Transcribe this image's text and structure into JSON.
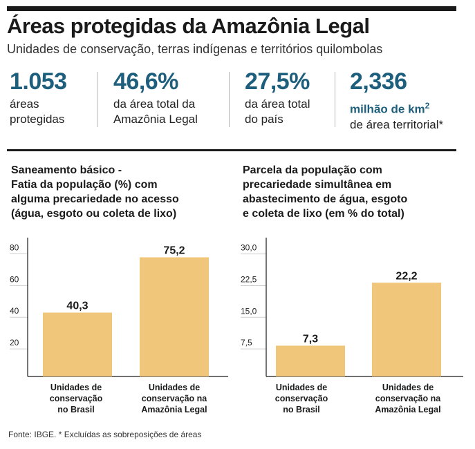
{
  "header": {
    "title": "Áreas protegidas da Amazônia Legal",
    "subtitle": "Unidades de conservação, terras indígenas e territórios quilombolas"
  },
  "stats": [
    {
      "value": "1.053",
      "desc_lines": [
        "áreas",
        "protegidas"
      ]
    },
    {
      "value": "46,6%",
      "desc_lines": [
        "da área total da",
        "Amazônia Legal"
      ]
    },
    {
      "value": "27,5%",
      "desc_lines": [
        "da área total",
        "do país"
      ]
    },
    {
      "value": "2,336",
      "unit": "milhão de km",
      "unit_sup": "2",
      "desc_lines": [
        "de área territorial*"
      ]
    }
  ],
  "colors": {
    "bar": "#f0c77a",
    "accent": "#1e5f7e",
    "rule": "#1a1a1a"
  },
  "chart_data": [
    {
      "type": "bar",
      "title_lines": [
        "Saneamento básico -",
        "Fatia da população (%) com",
        "alguma precariedade no acesso",
        "(água, esgoto ou coleta de lixo)"
      ],
      "categories": [
        [
          "Unidades de",
          "conservação",
          "no Brasil"
        ],
        [
          "Unidades de",
          "conservação na",
          "Amazônia Legal"
        ]
      ],
      "values": [
        40.3,
        75.2
      ],
      "value_labels": [
        "40,3",
        "75,2"
      ],
      "yticks": [
        20,
        40,
        60,
        80
      ],
      "ytick_labels": [
        "20",
        "40",
        "60",
        "80"
      ],
      "ylim": [
        0,
        85
      ]
    },
    {
      "type": "bar",
      "title_lines": [
        "Parcela da população com",
        "precariedade simultânea em",
        "abastecimento de água, esgoto",
        "e coleta de lixo (em % do total)"
      ],
      "categories": [
        [
          "Unidades de",
          "conservação",
          "no Brasil"
        ],
        [
          "Unidades de",
          "conservação na",
          "Amazônia Legal"
        ]
      ],
      "values": [
        7.3,
        22.2
      ],
      "value_labels": [
        "7,3",
        "22,2"
      ],
      "yticks": [
        7.5,
        15.0,
        22.5,
        30.0
      ],
      "ytick_labels": [
        "7,5",
        "15,0",
        "22,5",
        "30,0"
      ],
      "ylim": [
        0,
        31.9
      ]
    }
  ],
  "footer": {
    "source": "Fonte: IBGE. * Excluídas as sobreposições de áreas"
  }
}
